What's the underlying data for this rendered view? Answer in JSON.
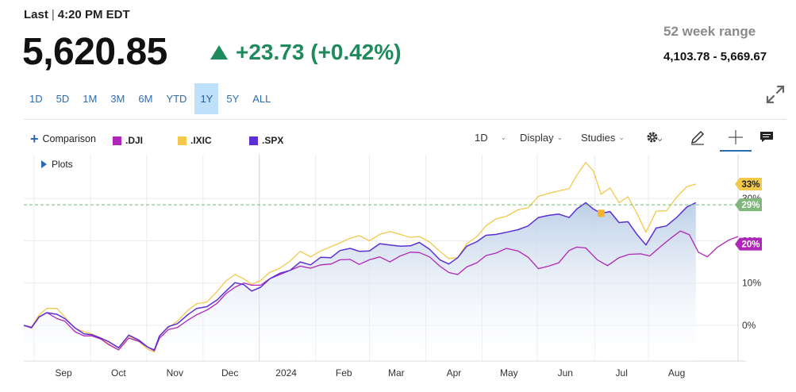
{
  "header": {
    "last_label": "Last",
    "time": "4:20 PM EDT",
    "price": "5,620.85",
    "change": "+23.73 (+0.42%)",
    "range_label": "52 week range",
    "range_value": "4,103.78 - 5,669.67"
  },
  "periods": [
    {
      "label": "1D"
    },
    {
      "label": "5D"
    },
    {
      "label": "1M"
    },
    {
      "label": "3M"
    },
    {
      "label": "6M"
    },
    {
      "label": "YTD"
    },
    {
      "label": "1Y",
      "active": true
    },
    {
      "label": "5Y"
    },
    {
      "label": "ALL"
    }
  ],
  "toolbar": {
    "comparison_label": "Comparison",
    "interval_label": "1D",
    "display_label": "Display",
    "studies_label": "Studies",
    "plots_label": "Plots"
  },
  "icons": {
    "expand": "expand-arrows-icon",
    "settings": "gear-icon",
    "draw": "pencil-icon",
    "crosshair": "crosshair-icon",
    "comment": "comment-icon"
  },
  "colors": {
    "up": "#1f8a5b",
    "dji": "#b026b8",
    "ixic": "#f2c94c",
    "spx": "#5b2fd6",
    "spx_badge": "#7fb87a",
    "area_top": "#b9cde6"
  },
  "chart_data": {
    "type": "line",
    "x_tick_labels": [
      "Sep",
      "Oct",
      "Nov",
      "Dec",
      "2024",
      "Feb",
      "Mar",
      "Apr",
      "May",
      "Jun",
      "Jul",
      "Aug"
    ],
    "y_tick_labels": [
      "0%",
      "10%",
      "20%",
      "30%"
    ],
    "ylim": [
      -9,
      38
    ],
    "legend_placement": "top-left",
    "grid": true,
    "reference_line": 28.5,
    "series": [
      {
        "name": ".DJI",
        "color": "#b026b8",
        "last_label": "20%",
        "points": [
          [
            -1.2,
            0
          ],
          [
            -0.6,
            -0.6
          ],
          [
            0,
            2
          ],
          [
            0.6,
            3
          ],
          [
            1.4,
            1.6
          ],
          [
            2,
            1
          ],
          [
            2.8,
            -1.5
          ],
          [
            3.5,
            -2.5
          ],
          [
            4.1,
            -2.5
          ],
          [
            4.8,
            -3.2
          ],
          [
            5.4,
            -4.5
          ],
          [
            6.2,
            -5.8
          ],
          [
            7,
            -3
          ],
          [
            7.8,
            -3.8
          ],
          [
            8.5,
            -5.2
          ],
          [
            9,
            -6
          ],
          [
            9.4,
            -3
          ],
          [
            10.1,
            -1
          ],
          [
            10.8,
            -0.5
          ],
          [
            11.6,
            1.2
          ],
          [
            12.3,
            2.5
          ],
          [
            13.1,
            3.6
          ],
          [
            13.9,
            5.2
          ],
          [
            14.6,
            7.5
          ],
          [
            15.3,
            9
          ],
          [
            16,
            10
          ],
          [
            16.6,
            9.5
          ],
          [
            17.3,
            9.5
          ],
          [
            18,
            11
          ],
          [
            18.8,
            12
          ],
          [
            19.6,
            13
          ],
          [
            20.4,
            14
          ],
          [
            21.2,
            13.5
          ],
          [
            22,
            14.3
          ],
          [
            22.8,
            14.5
          ],
          [
            23.5,
            15.5
          ],
          [
            24.3,
            15.6
          ],
          [
            25,
            14.4
          ],
          [
            25.8,
            15.5
          ],
          [
            26.6,
            16.2
          ],
          [
            27.4,
            15
          ],
          [
            28.2,
            16.4
          ],
          [
            29,
            17.3
          ],
          [
            29.7,
            17.2
          ],
          [
            30.5,
            16.2
          ],
          [
            31.3,
            14
          ],
          [
            32,
            12.5
          ],
          [
            32.7,
            12
          ],
          [
            33.4,
            13.8
          ],
          [
            34.2,
            14.8
          ],
          [
            34.9,
            16.5
          ],
          [
            35.7,
            17.1
          ],
          [
            36.5,
            18.2
          ],
          [
            37.4,
            17.6
          ],
          [
            38.2,
            16.1
          ],
          [
            39,
            13.4
          ],
          [
            39.8,
            14
          ],
          [
            40.6,
            14.8
          ],
          [
            41.4,
            17.7
          ],
          [
            42,
            18.5
          ],
          [
            42.7,
            18.3
          ],
          [
            43.6,
            15.5
          ],
          [
            44.4,
            14.1
          ],
          [
            45.3,
            16
          ],
          [
            46.1,
            16.8
          ],
          [
            47,
            16.9
          ],
          [
            47.7,
            16.4
          ],
          [
            48.5,
            18.5
          ],
          [
            49.3,
            20.5
          ],
          [
            50.1,
            22.3
          ],
          [
            50.8,
            21.4
          ],
          [
            51.5,
            17.3
          ],
          [
            52.2,
            16.2
          ],
          [
            53,
            18.5
          ],
          [
            53.9,
            20.2
          ],
          [
            54.6,
            21
          ]
        ]
      },
      {
        "name": ".IXIC",
        "color": "#f2c94c",
        "last_label": "33%",
        "points": [
          [
            -1.2,
            0
          ],
          [
            -0.6,
            -0.4
          ],
          [
            0,
            2.5
          ],
          [
            0.6,
            4
          ],
          [
            1.4,
            4
          ],
          [
            2,
            2
          ],
          [
            2.8,
            -0.7
          ],
          [
            3.5,
            -1.5
          ],
          [
            4.1,
            -2
          ],
          [
            4.8,
            -3
          ],
          [
            5.4,
            -4.3
          ],
          [
            6.2,
            -5.8
          ],
          [
            7,
            -2.5
          ],
          [
            7.8,
            -3.8
          ],
          [
            8.5,
            -5.7
          ],
          [
            9,
            -6.3
          ],
          [
            9.4,
            -2.5
          ],
          [
            10.1,
            -0.5
          ],
          [
            10.8,
            1
          ],
          [
            11.6,
            3.5
          ],
          [
            12.3,
            5.1
          ],
          [
            13.1,
            5.5
          ],
          [
            13.9,
            8
          ],
          [
            14.6,
            10.5
          ],
          [
            15.3,
            12
          ],
          [
            16,
            11
          ],
          [
            16.6,
            9.7
          ],
          [
            17.3,
            10.6
          ],
          [
            18,
            12.5
          ],
          [
            18.8,
            13.5
          ],
          [
            19.6,
            15.2
          ],
          [
            20.4,
            17.5
          ],
          [
            21.2,
            16.2
          ],
          [
            22,
            17.6
          ],
          [
            22.8,
            18.6
          ],
          [
            23.5,
            19.5
          ],
          [
            24.3,
            20.6
          ],
          [
            25,
            21.2
          ],
          [
            25.8,
            20
          ],
          [
            26.6,
            21.5
          ],
          [
            27.4,
            22.2
          ],
          [
            28.2,
            21.5
          ],
          [
            29,
            20.8
          ],
          [
            29.7,
            21
          ],
          [
            30.5,
            19.7
          ],
          [
            31.3,
            17.5
          ],
          [
            32,
            15.8
          ],
          [
            32.7,
            16
          ],
          [
            33.4,
            19.3
          ],
          [
            34.2,
            21
          ],
          [
            34.9,
            23.5
          ],
          [
            35.7,
            25.2
          ],
          [
            36.5,
            25.8
          ],
          [
            37.4,
            27.3
          ],
          [
            38.2,
            27.8
          ],
          [
            39,
            30.5
          ],
          [
            39.8,
            31.2
          ],
          [
            40.6,
            31.8
          ],
          [
            41.4,
            32.3
          ],
          [
            42,
            35.5
          ],
          [
            42.7,
            38.5
          ],
          [
            43.3,
            36.5
          ],
          [
            43.9,
            31
          ],
          [
            44.6,
            32.5
          ],
          [
            45.3,
            29
          ],
          [
            46,
            30.4
          ],
          [
            46.7,
            26.5
          ],
          [
            47.4,
            22
          ],
          [
            48.2,
            27
          ],
          [
            49,
            27.1
          ],
          [
            49.8,
            30.3
          ],
          [
            50.6,
            32.8
          ],
          [
            51.3,
            33.4
          ]
        ]
      },
      {
        "name": ".SPX",
        "color": "#5b2fd6",
        "last_label": "29%",
        "points": [
          [
            -1.2,
            0
          ],
          [
            -0.6,
            -0.5
          ],
          [
            0,
            2
          ],
          [
            0.6,
            3
          ],
          [
            1.4,
            2.6
          ],
          [
            2,
            1.6
          ],
          [
            2.8,
            -0.6
          ],
          [
            3.5,
            -2
          ],
          [
            4.1,
            -2.2
          ],
          [
            4.8,
            -3
          ],
          [
            5.4,
            -3.8
          ],
          [
            6.2,
            -5.3
          ],
          [
            7,
            -2.3
          ],
          [
            7.8,
            -3.5
          ],
          [
            8.5,
            -5.2
          ],
          [
            9,
            -5.8
          ],
          [
            9.4,
            -2.5
          ],
          [
            10.1,
            -0.3
          ],
          [
            10.8,
            0.4
          ],
          [
            11.6,
            2.5
          ],
          [
            12.3,
            4
          ],
          [
            13.1,
            4.4
          ],
          [
            13.9,
            6
          ],
          [
            14.6,
            8.1
          ],
          [
            15.3,
            10.1
          ],
          [
            16,
            9.6
          ],
          [
            16.6,
            8.1
          ],
          [
            17.3,
            9
          ],
          [
            18,
            11
          ],
          [
            18.8,
            12.3
          ],
          [
            19.6,
            13
          ],
          [
            20.4,
            15
          ],
          [
            21.2,
            14.3
          ],
          [
            22,
            16.1
          ],
          [
            22.8,
            16
          ],
          [
            23.5,
            17.7
          ],
          [
            24.3,
            18.2
          ],
          [
            25,
            17.5
          ],
          [
            25.8,
            17.6
          ],
          [
            26.6,
            19.3
          ],
          [
            27.4,
            19
          ],
          [
            28.2,
            18.7
          ],
          [
            29,
            18.8
          ],
          [
            29.7,
            19.6
          ],
          [
            30.5,
            18
          ],
          [
            31.3,
            15.5
          ],
          [
            32,
            14.5
          ],
          [
            32.7,
            16
          ],
          [
            33.4,
            18.7
          ],
          [
            34.2,
            19.8
          ],
          [
            34.9,
            21.3
          ],
          [
            35.7,
            21.5
          ],
          [
            36.5,
            22
          ],
          [
            37.4,
            22.6
          ],
          [
            38.2,
            23.5
          ],
          [
            39,
            25.5
          ],
          [
            39.8,
            26
          ],
          [
            40.6,
            26.3
          ],
          [
            41.4,
            25.5
          ],
          [
            42,
            27.5
          ],
          [
            42.7,
            29
          ],
          [
            43.3,
            27.5
          ],
          [
            43.9,
            26.5
          ],
          [
            44.6,
            26.9
          ],
          [
            45.3,
            24.3
          ],
          [
            46,
            24.5
          ],
          [
            46.7,
            21.5
          ],
          [
            47.4,
            19
          ],
          [
            48.2,
            23
          ],
          [
            49,
            23.5
          ],
          [
            49.8,
            25.5
          ],
          [
            50.6,
            28
          ],
          [
            51.3,
            29
          ]
        ]
      }
    ]
  }
}
